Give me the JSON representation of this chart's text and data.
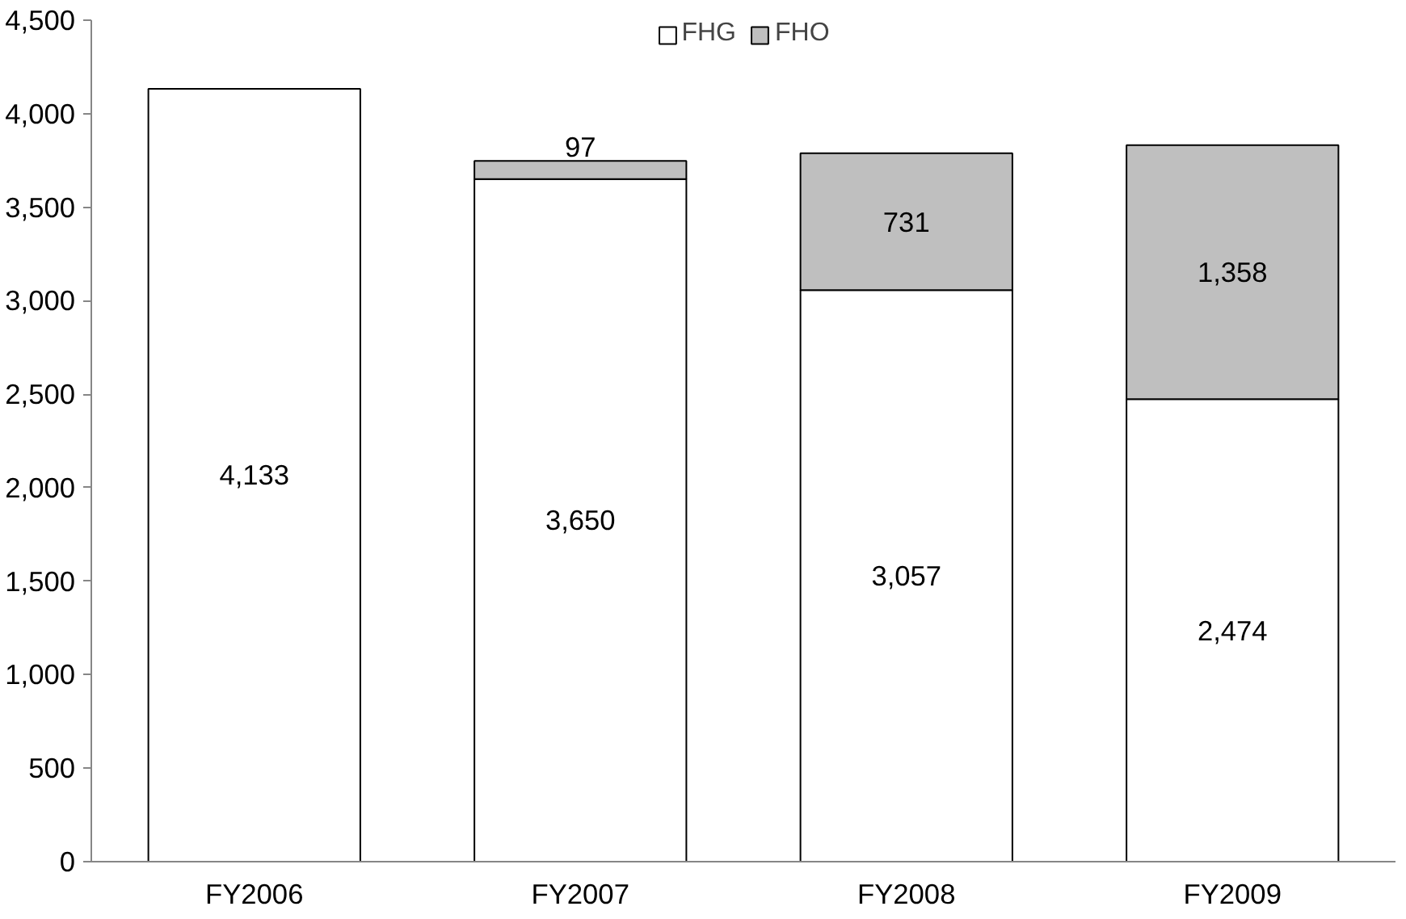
{
  "chart_data": {
    "type": "bar",
    "stacked": true,
    "categories": [
      "FY2006",
      "FY2007",
      "FY2008",
      "FY2009"
    ],
    "series": [
      {
        "name": "FHG",
        "color": "#ffffff",
        "values": [
          4133,
          3650,
          3057,
          2474
        ],
        "value_labels": [
          "4,133",
          "3,650",
          "3,057",
          "2,474"
        ]
      },
      {
        "name": "FHO",
        "color": "#bfbfbf",
        "values": [
          null,
          97,
          731,
          1358
        ],
        "value_labels": [
          null,
          "97",
          "731",
          "1,358"
        ]
      }
    ],
    "ylim": [
      0,
      4500
    ],
    "yticks": [
      0,
      {
        "value": 500,
        "label": "500"
      },
      {
        "value": 1000,
        "label": "1,000"
      },
      {
        "value": 1500,
        "label": "1,500"
      },
      {
        "value": 2000,
        "label": "2,000"
      },
      {
        "value": 2500,
        "label": "2,500"
      },
      {
        "value": 3000,
        "label": "3,000"
      },
      {
        "value": 3500,
        "label": "3,500"
      },
      {
        "value": 4000,
        "label": "4,000"
      },
      {
        "value": 4500,
        "label": "4,500"
      }
    ],
    "grid": false,
    "legend": "top"
  }
}
